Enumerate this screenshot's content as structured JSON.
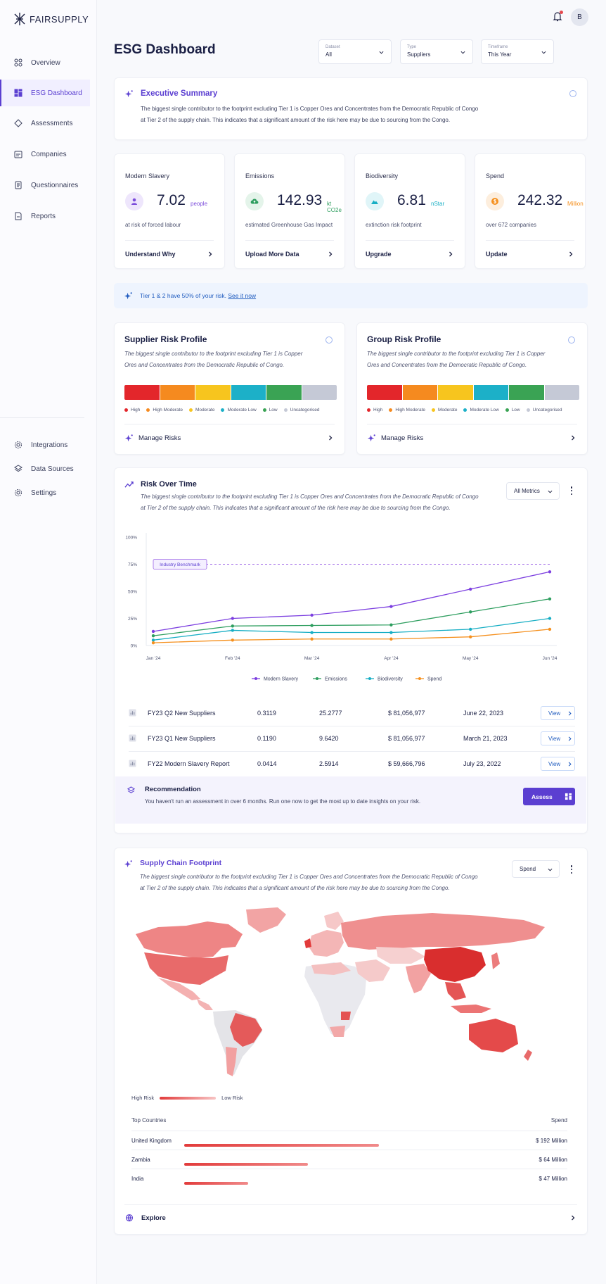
{
  "app": {
    "logo_text": "FAIRSUPPLY",
    "avatar_initial": "B"
  },
  "sidebar": {
    "items": [
      {
        "label": "Overview",
        "icon": "overview-icon"
      },
      {
        "label": "ESG Dashboard",
        "icon": "dashboard-icon",
        "active": true
      },
      {
        "label": "Assessments",
        "icon": "assessments-icon"
      },
      {
        "label": "Companies",
        "icon": "companies-icon"
      },
      {
        "label": "Questionnaires",
        "icon": "questionnaires-icon"
      },
      {
        "label": "Reports",
        "icon": "reports-icon"
      }
    ],
    "bottom_items": [
      {
        "label": "Integrations",
        "icon": "gear-icon"
      },
      {
        "label": "Data Sources",
        "icon": "layers-icon"
      },
      {
        "label": "Settings",
        "icon": "gear-icon"
      }
    ]
  },
  "header": {
    "title": "ESG Dashboard",
    "filters": [
      {
        "label": "Dataset",
        "value": "All"
      },
      {
        "label": "Type",
        "value": "Suppliers"
      },
      {
        "label": "Timeframe",
        "value": "This Year"
      }
    ]
  },
  "executive_summary": {
    "title": "Executive Summary",
    "line1": "The biggest single contributor to the footprint excluding Tier 1 is Copper Ores and Concentrates from the Democratic Republic of Congo",
    "line2": "at Tier 2 of the supply chain. This indicates that a significant amount of the risk here may be due to sourcing from the Congo."
  },
  "metrics": [
    {
      "label": "Modern Slavery",
      "value": "7.02",
      "unit": "people",
      "sub": "at risk of forced labour",
      "link": "Understand Why",
      "color": "#7c4ddb",
      "icon": "person-icon"
    },
    {
      "label": "Emissions",
      "value": "142.93",
      "unit": "kt CO2e",
      "sub": "estimated Greenhouse Gas Impact",
      "link": "Upload More Data",
      "color": "#2e9e5f",
      "icon": "cloud-upload-icon"
    },
    {
      "label": "Biodiversity",
      "value": "6.81",
      "unit": "nStar",
      "sub": "extinction risk footprint",
      "link": "Upgrade",
      "color": "#17aec4",
      "icon": "mountain-icon"
    },
    {
      "label": "Spend",
      "value": "242.32",
      "unit": "Million",
      "sub": "over 672 companies",
      "link": "Update",
      "color": "#f5901e",
      "icon": "dollar-icon"
    }
  ],
  "banner": {
    "text": "Tier 1 & 2 have 50% of your risk.",
    "link": "See it now"
  },
  "risk_legend": [
    {
      "label": "High",
      "color": "#e3262b"
    },
    {
      "label": "High Moderate",
      "color": "#f58a1f"
    },
    {
      "label": "Moderate",
      "color": "#f7c51e"
    },
    {
      "label": "Moderate Low",
      "color": "#1cb0c8"
    },
    {
      "label": "Low",
      "color": "#3aa354"
    },
    {
      "label": "Uncategorised",
      "color": "#c5c9d6"
    }
  ],
  "supplier_risk": {
    "title": "Supplier Risk Profile",
    "line1": "The biggest single contributor to the footprint excluding Tier 1 is Copper",
    "line2": "Ores and Concentrates from the Democratic Republic of Congo.",
    "link": "Manage Risks"
  },
  "group_risk": {
    "title": "Group Risk Profile",
    "line1": "The biggest single contributor to the footprint excluding Tier 1 is Copper",
    "line2": "Ores and Concentrates from the Democratic Republic of Congo.",
    "link": "Manage Risks"
  },
  "risk_over_time": {
    "title": "Risk Over Time",
    "line1": "The biggest single contributor to the footprint excluding Tier 1 is Copper Ores and Concentrates from the Democratic Republic of Congo",
    "line2": "at Tier 2 of the supply chain. This indicates that a significant amount of the risk here may be due to sourcing from the Congo.",
    "metric_select": "All Metrics"
  },
  "chart_data": {
    "type": "line",
    "x": [
      "Jan '24",
      "Feb '24",
      "Mar '24",
      "Apr '24",
      "May '24",
      "Jun '24"
    ],
    "ylim": [
      0,
      100
    ],
    "yticks": [
      "0%",
      "25%",
      "50%",
      "75%",
      "100%"
    ],
    "benchmark": {
      "label": "Industry Benchmark",
      "value": 75
    },
    "series": [
      {
        "name": "Modern Slavery",
        "color": "#7c3fe0",
        "values": [
          13,
          25,
          28,
          36,
          52,
          68
        ]
      },
      {
        "name": "Emissions",
        "color": "#2e9e5f",
        "values": [
          9,
          18,
          18.5,
          19,
          31,
          43
        ]
      },
      {
        "name": "Biodiversity",
        "color": "#17aec4",
        "values": [
          5,
          14,
          12,
          12,
          15,
          25
        ]
      },
      {
        "name": "Spend",
        "color": "#f5901e",
        "values": [
          2.5,
          5,
          6,
          6,
          8,
          15
        ]
      }
    ]
  },
  "datasets": [
    {
      "name": "FY23 Q2 New Suppliers",
      "v1": "0.3119",
      "v2": "25.2777",
      "spend": "$ 81,056,977",
      "date": "June 22, 2023",
      "action": "View"
    },
    {
      "name": "FY23 Q1 New Suppliers",
      "v1": "0.1190",
      "v2": "9.6420",
      "spend": "$ 81,056,977",
      "date": "March 21, 2023",
      "action": "View"
    },
    {
      "name": "FY22 Modern Slavery Report",
      "v1": "0.0414",
      "v2": "2.5914",
      "spend": "$ 59,666,796",
      "date": "July 23, 2022",
      "action": "View"
    }
  ],
  "recommendation": {
    "title": "Recommendation",
    "text": "You haven't run an assessment in over 6 months. Run one now to get the most up to date insights on your risk.",
    "button": "Assess"
  },
  "supply_chain": {
    "title": "Supply Chain Footprint",
    "line1": "The biggest single contributor to the footprint excluding Tier 1 is Copper Ores and Concentrates from the Democratic Republic of Congo",
    "line2": "at Tier 2 of the supply chain. This indicates that a significant amount of the risk here may be due to sourcing from the Congo.",
    "metric_select": "Spend",
    "legend_high": "High Risk",
    "legend_low": "Low Risk",
    "col_country": "Top Countries",
    "col_spend": "Spend",
    "countries": [
      {
        "name": "United Kingdom",
        "value": "$ 192 Million",
        "share": 1.0
      },
      {
        "name": "Zambia",
        "value": "$ 64 Million",
        "share": 0.635
      },
      {
        "name": "India",
        "value": "$ 47 Million",
        "share": 0.33
      }
    ],
    "explore": "Explore"
  }
}
